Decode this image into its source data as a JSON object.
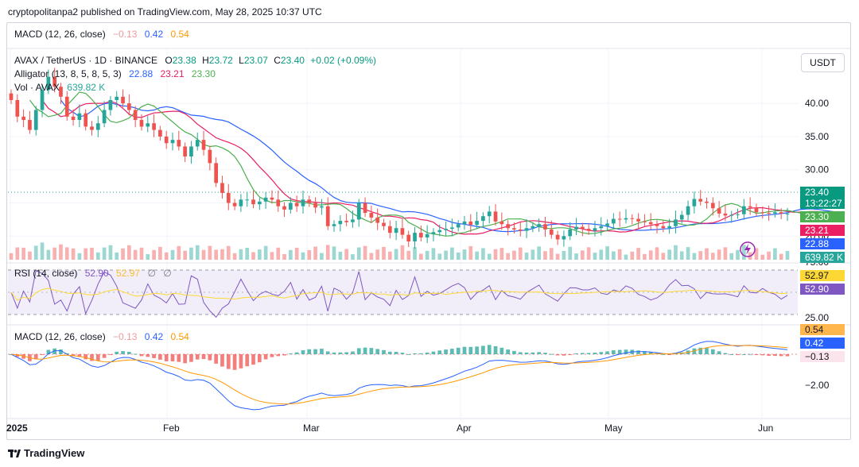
{
  "header": {
    "published": "cryptopolitanpa2 published on TradingView.com, May 28, 2025 10:37 UTC",
    "top_macd": {
      "name": "MACD (12, 26, close)",
      "hist": "−0.13",
      "macd": "0.42",
      "signal": "0.54"
    }
  },
  "legend": {
    "symbol": "AVAX / TetherUS · 1D · BINANCE",
    "o_label": "O",
    "o": "23.38",
    "h_label": "H",
    "h": "23.72",
    "l_label": "L",
    "l": "23.07",
    "c_label": "C",
    "c": "23.40",
    "change": "+0.02 (+0.09%)",
    "alligator": "Alligator (13, 8, 5, 8, 5, 3)",
    "jaw": "22.88",
    "teeth": "23.21",
    "lips": "23.30",
    "vol": "Vol · AVAX",
    "vol_value": "639.82 K"
  },
  "currency_button": "USDT",
  "price_labels": {
    "last": "23.40",
    "countdown": "13:22:27",
    "lips": "23.30",
    "teeth": "23.21",
    "jaw": "22.88",
    "vol": "639.82 K"
  },
  "rsi": {
    "name": "RSI (14, close)",
    "value": "52.90",
    "ma": "52.97",
    "v3": "∅",
    "v4": "∅",
    "label_ma": "52.97",
    "label_val": "52.90"
  },
  "macd": {
    "name": "MACD (12, 26, close)",
    "hist": "−0.13",
    "macd": "0.42",
    "signal": "0.54",
    "label_signal": "0.54",
    "label_macd": "0.42",
    "label_hist": "−0.13"
  },
  "footer": {
    "brand": "TradingView"
  },
  "colors": {
    "up": "#26a69a",
    "down": "#ef5350",
    "jaw": "#2962ff",
    "teeth": "#e91e63",
    "lips": "#4caf50",
    "rsi": "#7e57c2",
    "rsi_ma": "#fdd835",
    "macd": "#2962ff",
    "signal": "#ff9800",
    "hist_up": "#26a69a",
    "hist_down": "#ef5350"
  },
  "chart_data": [
    {
      "type": "candlestick",
      "title": "AVAX / TetherUS · 1D · BINANCE",
      "x_ticks": [
        "2025",
        "Feb",
        "Mar",
        "Apr",
        "May",
        "Jun"
      ],
      "y_ticks": [
        "40.00",
        "35.00",
        "30.00",
        "25.00",
        "20.00"
      ],
      "ylim": [
        18,
        46
      ],
      "series_close_approx": [
        40.5,
        38,
        37.5,
        36,
        39,
        42,
        44,
        42.5,
        41,
        38,
        37.5,
        38.5,
        36.5,
        36,
        37,
        39,
        40.5,
        41,
        40,
        39,
        37.5,
        36.5,
        37,
        36,
        35,
        34,
        34.5,
        33.5,
        32,
        33.5,
        34.5,
        33,
        31,
        28,
        26.5,
        25,
        24.5,
        25.5,
        25.5,
        24.8,
        25.2,
        25.8,
        25.5,
        24.5,
        24,
        25,
        24.5,
        25.5,
        25,
        24.3,
        24.5,
        21.5,
        21.8,
        22.3,
        22.1,
        22.5,
        25,
        23.5,
        22.8,
        22,
        21.5,
        20.5,
        21.2,
        20.2,
        19.2,
        20.5,
        19.8,
        20.3,
        20.6,
        20.9,
        21.1,
        21.3,
        21.8,
        22.2,
        21.7,
        22.3,
        23,
        23.7,
        22.2,
        21.8,
        21.2,
        21,
        20.8,
        21.2,
        21.5,
        21.8,
        21,
        20.2,
        19.5,
        20,
        21,
        21.4,
        21.1,
        20.8,
        21.2,
        21.5,
        21.9,
        22.6,
        22.5,
        22.7,
        22.6,
        22.2,
        22.1,
        21.8,
        21.5,
        21.2,
        21.5,
        22.5,
        23.2,
        24.5,
        25.6,
        25.2,
        25,
        24.2,
        23.4,
        23.1,
        23.2,
        23.3,
        24.5,
        24.3,
        23.6,
        23.5,
        23.4,
        23.6,
        23.4,
        23.4
      ],
      "alligator": {
        "jaw": 22.88,
        "teeth": 23.21,
        "lips": 23.3
      },
      "volume_last": "639.82 K"
    },
    {
      "type": "line",
      "title": "RSI (14, close)",
      "y_ticks": [
        "75.00",
        "25.00"
      ],
      "series": [
        {
          "name": "RSI",
          "last": 52.9
        },
        {
          "name": "RSI MA",
          "last": 52.97
        }
      ]
    },
    {
      "type": "line",
      "title": "MACD (12, 26, close)",
      "y_ticks": [
        "−2.00"
      ],
      "series": [
        {
          "name": "MACD",
          "last": 0.42
        },
        {
          "name": "Signal",
          "last": 0.54
        },
        {
          "name": "Histogram",
          "last": -0.13
        }
      ]
    }
  ]
}
